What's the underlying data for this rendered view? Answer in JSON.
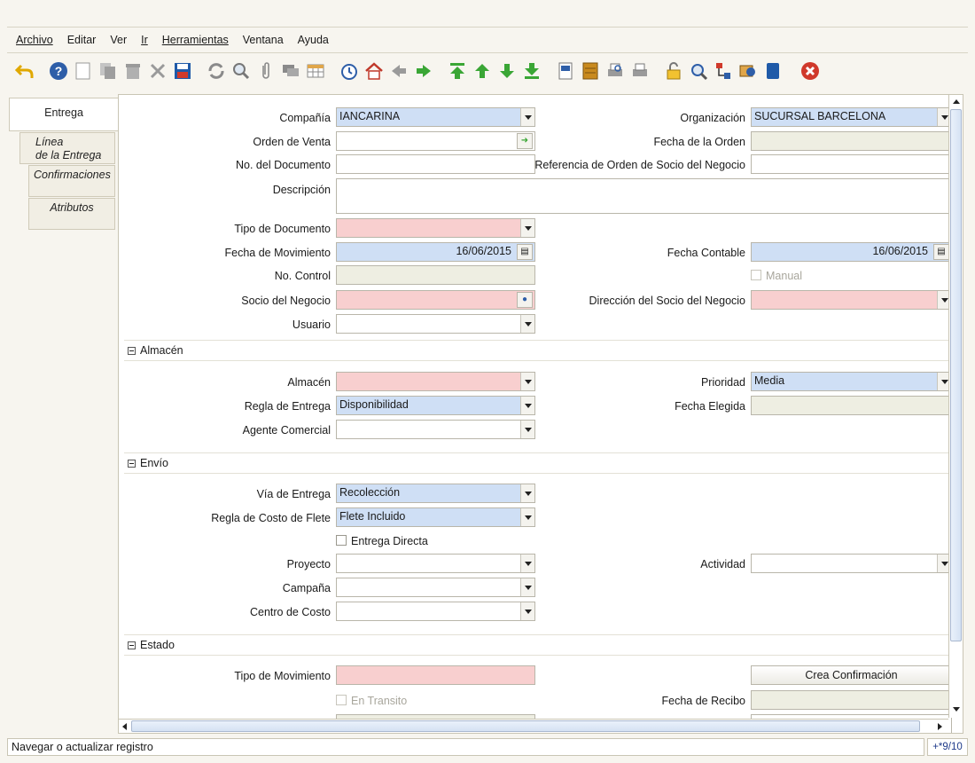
{
  "menu": [
    "Archivo",
    "Editar",
    "Ver",
    "Ir",
    "Herramientas",
    "Ventana",
    "Ayuda"
  ],
  "tabs": {
    "entrega": "Entrega",
    "linea_1": "Línea",
    "linea_2": "de la Entrega",
    "confirmaciones": "Confirmaciones",
    "atributos": "Atributos"
  },
  "form": {
    "compania": {
      "label": "Compañía",
      "value": "IANCARINA"
    },
    "organizacion": {
      "label": "Organización",
      "value": "SUCURSAL BARCELONA"
    },
    "orden_venta": {
      "label": "Orden de Venta",
      "value": ""
    },
    "fecha_orden": {
      "label": "Fecha de la Orden",
      "value": ""
    },
    "no_documento": {
      "label": "No. del Documento",
      "value": ""
    },
    "referencia_orden": {
      "label": "Referencia de Orden de Socio del Negocio",
      "value": ""
    },
    "descripcion": {
      "label": "Descripción",
      "value": ""
    },
    "tipo_documento": {
      "label": "Tipo de Documento",
      "value": ""
    },
    "fecha_movimiento": {
      "label": "Fecha de Movimiento",
      "value": "16/06/2015"
    },
    "fecha_contable": {
      "label": "Fecha Contable",
      "value": "16/06/2015"
    },
    "no_control": {
      "label": "No. Control",
      "value": ""
    },
    "manual": {
      "label": "Manual",
      "checked": false
    },
    "socio_negocio": {
      "label": "Socio del Negocio",
      "value": ""
    },
    "direccion_socio": {
      "label": "Dirección del Socio del Negocio",
      "value": ""
    },
    "usuario": {
      "label": "Usuario",
      "value": ""
    }
  },
  "sections": {
    "almacen": "Almacén",
    "envio": "Envío",
    "estado": "Estado"
  },
  "almacen": {
    "almacen": {
      "label": "Almacén",
      "value": ""
    },
    "prioridad": {
      "label": "Prioridad",
      "value": "Media"
    },
    "regla_entrega": {
      "label": "Regla de Entrega",
      "value": "Disponibilidad"
    },
    "fecha_elegida": {
      "label": "Fecha Elegida",
      "value": ""
    },
    "agente_comercial": {
      "label": "Agente Comercial",
      "value": ""
    }
  },
  "envio": {
    "via_entrega": {
      "label": "Vía de Entrega",
      "value": "Recolección"
    },
    "regla_costo_flete": {
      "label": "Regla de Costo de Flete",
      "value": "Flete Incluido"
    },
    "entrega_directa": {
      "label": "Entrega Directa",
      "checked": false
    },
    "proyecto": {
      "label": "Proyecto",
      "value": ""
    },
    "actividad": {
      "label": "Actividad",
      "value": ""
    },
    "campana": {
      "label": "Campaña",
      "value": ""
    },
    "centro_costo": {
      "label": "Centro de Costo",
      "value": ""
    }
  },
  "estado": {
    "tipo_movimiento": {
      "label": "Tipo de Movimiento",
      "value": ""
    },
    "crea_confirmacion": "Crea Confirmación",
    "en_transito": {
      "label": "En Transito",
      "checked": false
    },
    "fecha_recibo": {
      "label": "Fecha de Recibo",
      "value": ""
    }
  },
  "status": {
    "message": "Navegar o actualizar registro",
    "record_counter": "+*9/10"
  },
  "colors": {
    "mandatory": "#f8cfcf",
    "selected": "#cfdff5",
    "readonly": "#eeeee2"
  },
  "toolbar_icons": [
    "undo-icon",
    "help-icon",
    "new-record-icon",
    "copy-record-icon",
    "delete-icon",
    "delete-selection-icon",
    "save-icon",
    "refresh-icon",
    "find-icon",
    "attachment-icon",
    "chat-icon",
    "grid-toggle-icon",
    "history-icon",
    "home-icon",
    "previous-record-icon",
    "next-record-icon",
    "first-record-icon",
    "parent-record-icon",
    "detail-record-icon",
    "last-record-icon",
    "report-icon",
    "archive-icon",
    "print-preview-icon",
    "print-icon",
    "lock-icon",
    "zoom-across-icon",
    "active-workflows-icon",
    "requests-icon",
    "product-info-icon",
    "close-window-icon"
  ]
}
